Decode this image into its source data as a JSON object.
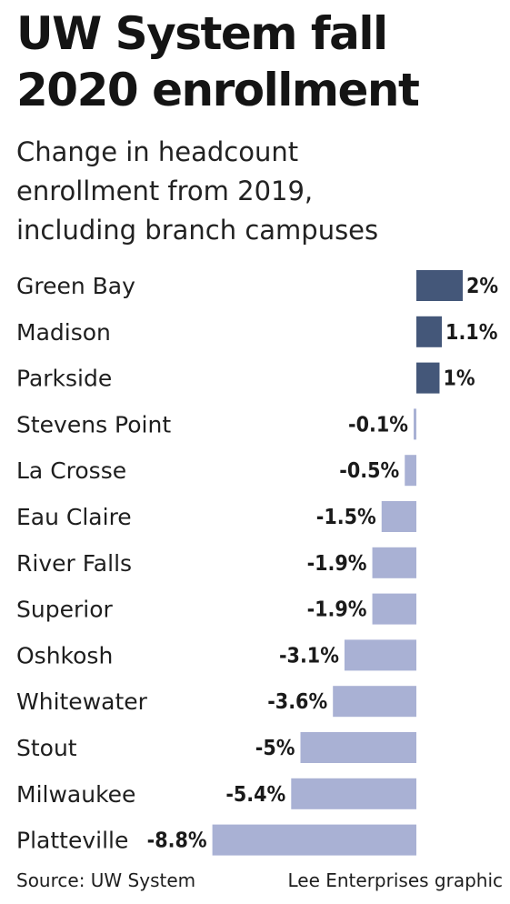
{
  "header": {
    "title_line1": "UW System fall",
    "title_line2": "2020 enrollment",
    "subtitle_line1": "Change in headcount",
    "subtitle_line2": "enrollment from 2019,",
    "subtitle_line3": "including branch campuses"
  },
  "footer": {
    "source": "Source: UW System",
    "credit": "Lee Enterprises graphic"
  },
  "colors": {
    "positive": "#445779",
    "negative": "#a9b1d4"
  },
  "chart_data": {
    "type": "bar",
    "orientation": "horizontal",
    "categories": [
      "Green Bay",
      "Madison",
      "Parkside",
      "Stevens Point",
      "La Crosse",
      "Eau Claire",
      "River Falls",
      "Superior",
      "Oshkosh",
      "Whitewater",
      "Stout",
      "Milwaukee",
      "Platteville"
    ],
    "values": [
      2,
      1.1,
      1,
      -0.1,
      -0.5,
      -1.5,
      -1.9,
      -1.9,
      -3.1,
      -3.6,
      -5,
      -5.4,
      -8.8
    ],
    "labels": [
      "2%",
      "1.1%",
      "1%",
      "-0.1%",
      "-0.5%",
      "-1.5%",
      "-1.9%",
      "-1.9%",
      "-3.1%",
      "-3.6%",
      "-5%",
      "-5.4%",
      "-8.8%"
    ],
    "unit": "%",
    "grid": false,
    "legend": "none"
  }
}
